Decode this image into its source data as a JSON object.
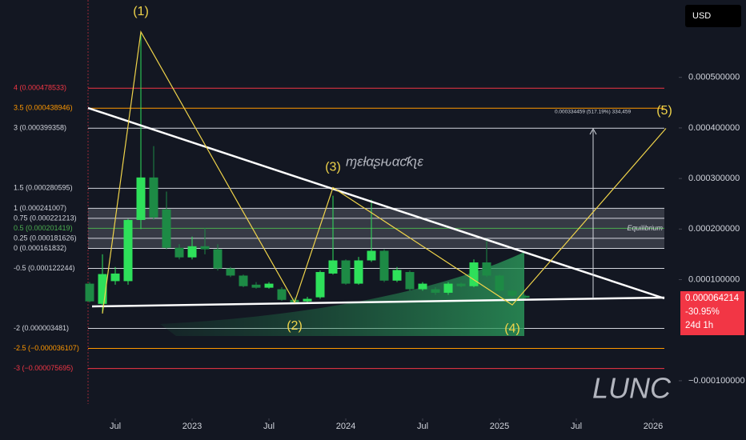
{
  "chart_data": {
    "type": "candlestick",
    "symbol": "LUNC",
    "currency": "USD",
    "watermark": "ɱɛƚαʂԋαƈƙʅɛ",
    "xlim": [
      "2021-10",
      "2026-03"
    ],
    "ylim": [
      -0.000146,
      0.000653
    ],
    "xticks": [
      {
        "value": "2022-07",
        "label": "Jul"
      },
      {
        "value": "2023-01",
        "label": "2023"
      },
      {
        "value": "2023-07",
        "label": "Jul"
      },
      {
        "value": "2024-01",
        "label": "2024"
      },
      {
        "value": "2024-07",
        "label": "Jul"
      },
      {
        "value": "2025-01",
        "label": "2025"
      },
      {
        "value": "2025-07",
        "label": "Jul"
      },
      {
        "value": "2026-01",
        "label": "2026"
      }
    ],
    "yticks": [
      {
        "value": 0.0005,
        "label": "0.000500000"
      },
      {
        "value": 0.0004,
        "label": "0.000400000"
      },
      {
        "value": 0.0003,
        "label": "0.000300000"
      },
      {
        "value": 0.0002,
        "label": "0.000200000"
      },
      {
        "value": 0.0001,
        "label": "0.000100000"
      },
      {
        "value": -0.0001,
        "label": "−0.000100000"
      }
    ],
    "candles": {
      "up_color": "#2ee05a",
      "down_color": "#1d8a45",
      "x": [
        "2022-05",
        "2022-06",
        "2022-07",
        "2022-08",
        "2022-09",
        "2022-10",
        "2022-11",
        "2022-12",
        "2023-01",
        "2023-02",
        "2023-03",
        "2023-04",
        "2023-05",
        "2023-06",
        "2023-07",
        "2023-08",
        "2023-09",
        "2023-10",
        "2023-11",
        "2023-12",
        "2024-01",
        "2024-02",
        "2024-03",
        "2024-04",
        "2024-05",
        "2024-06",
        "2024-07",
        "2024-08",
        "2024-09",
        "2024-10",
        "2024-11",
        "2024-12",
        "2025-01",
        "2025-02",
        "2025-03"
      ],
      "open": [
        9.2e-05,
        5.2e-05,
        9.7e-05,
        9.7e-05,
        0.000218,
        0.000302,
        0.000239,
        0.000163,
        0.000144,
        0.000166,
        0.00016,
        0.000122,
        0.000108,
        9e-05,
        8.4e-05,
        8.1e-05,
        6e-05,
        5.7e-05,
        6.5e-05,
        0.000112,
        0.000138,
        9.2e-05,
        0.000138,
        0.000157,
        9.8e-05,
        0.000115,
        8.1e-05,
        8.1e-05,
        7.4e-05,
        9.2e-05,
        8.7e-05,
        0.000134,
        0.000108,
        7.8e-05,
        6.8e-05
      ],
      "high": [
        9.5e-05,
        0.00015,
        0.000125,
        0.00022,
        0.00059,
        0.000364,
        0.000274,
        0.00017,
        0.000185,
        0.000202,
        0.00017,
        0.000125,
        0.00011,
        9.5e-05,
        9.5e-05,
        8.5e-05,
        6.5e-05,
        6.6e-05,
        0.000118,
        0.000266,
        0.00014,
        0.000145,
        0.000258,
        0.00016,
        0.000125,
        0.000118,
        9.5e-05,
        8.5e-05,
        9.5e-05,
        9.4e-05,
        0.00014,
        0.000182,
        0.00011,
        8e-05,
        7e-05
      ],
      "low": [
        5.5e-05,
        3.3e-05,
        9e-05,
        9e-05,
        0.0002,
        0.000218,
        0.00016,
        0.00014,
        0.00014,
        0.00015,
        0.000118,
        0.000105,
        8.5e-05,
        8.2e-05,
        8.2e-05,
        5.8e-05,
        5.2e-05,
        5.5e-05,
        6.2e-05,
        0.00011,
        9e-05,
        9e-05,
        0.000135,
        9.5e-05,
        9.5e-05,
        7.8e-05,
        7.8e-05,
        7e-05,
        7e-05,
        8.5e-05,
        8.5e-05,
        0.000105,
        7.5e-05,
        6.5e-05,
        6.2e-05
      ],
      "close": [
        5.7e-05,
        0.000111,
        0.000112,
        0.000218,
        0.000302,
        0.000223,
        0.000163,
        0.000144,
        0.000166,
        0.00016,
        0.000122,
        0.000108,
        8.7e-05,
        8.4e-05,
        9.2e-05,
        6e-05,
        5.5e-05,
        6.2e-05,
        0.000115,
        0.000138,
        9.2e-05,
        0.000138,
        0.000157,
        9.8e-05,
        0.000119,
        8.1e-05,
        9.2e-05,
        7.4e-05,
        9.2e-05,
        8.7e-05,
        0.000134,
        0.000108,
        7.8e-05,
        6.8e-05,
        6.4214e-05
      ]
    },
    "fib_levels": [
      {
        "label": "4 (0.000478533)",
        "value": 0.000478533,
        "color": "#f23645"
      },
      {
        "label": "3.5 (0.000438946)",
        "value": 0.000438946,
        "color": "#ff9800"
      },
      {
        "label": "3 (0.000399358)",
        "value": 0.000399358,
        "color": "#d1d4dc"
      },
      {
        "label": "1.5 (0.000280595)",
        "value": 0.000280595,
        "color": "#d1d4dc"
      },
      {
        "label": "1 (0.000241007)",
        "value": 0.000241007,
        "color": "#d1d4dc"
      },
      {
        "label": "0.75 (0.000221213)",
        "value": 0.000221213,
        "color": "#d1d4dc"
      },
      {
        "label": "0.5 (0.000201419)",
        "value": 0.000201419,
        "color": "#4caf50"
      },
      {
        "label": "0.25 (0.000181626)",
        "value": 0.000181626,
        "color": "#d1d4dc"
      },
      {
        "label": "0 (0.000161832)",
        "value": 0.000161832,
        "color": "#d1d4dc"
      },
      {
        "label": "-0.5 (0.000122244)",
        "value": 0.000122244,
        "color": "#d1d4dc"
      },
      {
        "label": "-2 (0.000003481)",
        "value": 3.481e-06,
        "color": "#d1d4dc"
      },
      {
        "label": "-2.5 (−0.000036107)",
        "value": -3.6107e-05,
        "color": "#ff9800"
      },
      {
        "label": "-3 (−0.000075695)",
        "value": -7.5695e-05,
        "color": "#f23645"
      }
    ],
    "equilibrium_label": "Equilibrium",
    "wave_start": {
      "x": "2022-06",
      "y": 3.3e-05
    },
    "waves": [
      {
        "label": "(1)",
        "x": "2022-09",
        "y": 0.00059
      },
      {
        "label": "(2)",
        "x": "2023-09",
        "y": 5.5e-05
      },
      {
        "label": "(3)",
        "x": "2023-12",
        "y": 0.000282
      },
      {
        "label": "(4)",
        "x": "2025-02",
        "y": 5e-05
      },
      {
        "label": "(5)",
        "x": "2026-02",
        "y": 0.000399
      }
    ],
    "measure_label": "0.000334459 (517.19%) 334,459",
    "price_badge": {
      "price": "0.000064214",
      "change": "-30.95%",
      "countdown": "24d 1h"
    }
  }
}
